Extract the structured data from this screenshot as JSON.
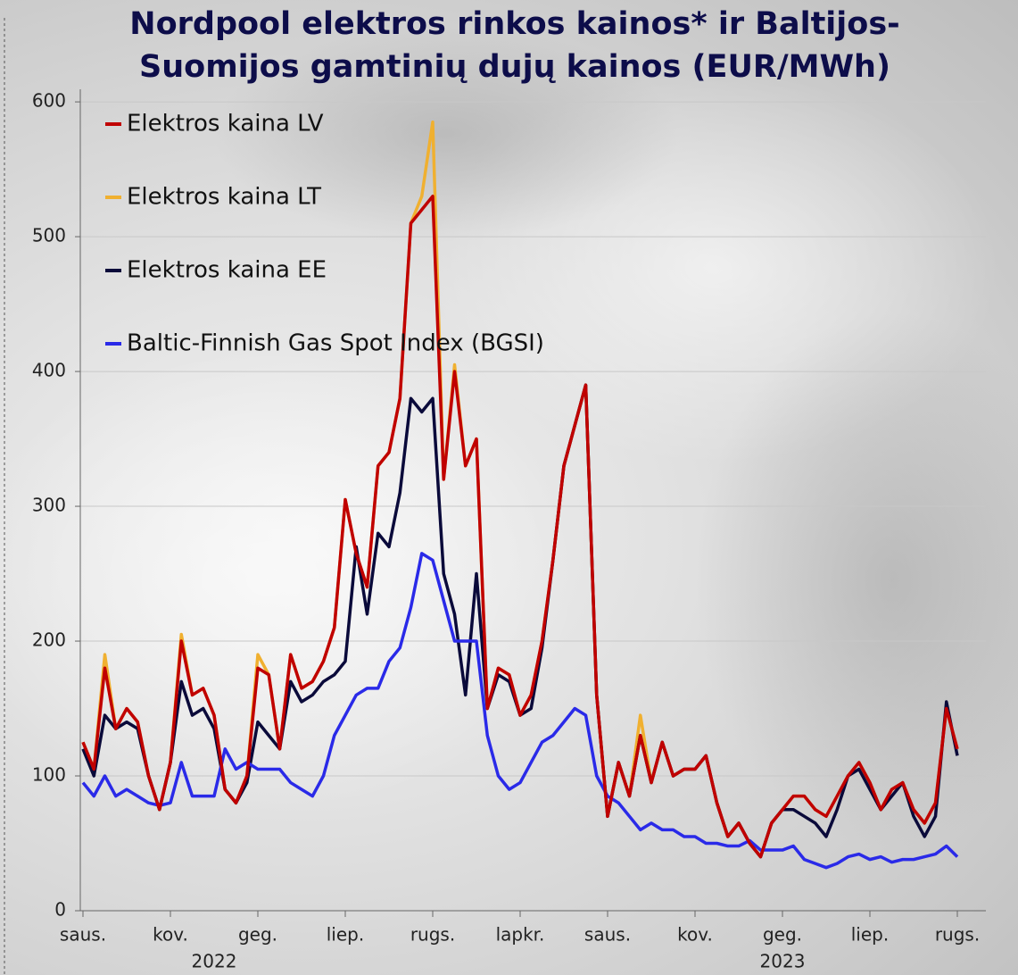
{
  "chart_data": {
    "type": "line",
    "title": [
      "Nordpool elektros rinkos kainos* ir Baltijos-",
      "Suomijos gamtinių dujų kainos (EUR/MWh)"
    ],
    "categories": [
      "saus.",
      null,
      null,
      null,
      null,
      null,
      null,
      null,
      "kov.",
      null,
      null,
      null,
      null,
      null,
      null,
      null,
      "geg.",
      null,
      null,
      null,
      null,
      null,
      null,
      null,
      "liep.",
      null,
      null,
      null,
      null,
      null,
      null,
      null,
      "rugs.",
      null,
      null,
      null,
      null,
      null,
      null,
      null,
      "lapkr.",
      null,
      null,
      null,
      null,
      null,
      null,
      null,
      "saus.",
      null,
      null,
      null,
      null,
      null,
      null,
      null,
      "kov.",
      null,
      null,
      null,
      null,
      null,
      null,
      null,
      "geg.",
      null,
      null,
      null,
      null,
      null,
      null,
      null,
      "liep.",
      null,
      null,
      null,
      null,
      null,
      null,
      null,
      "rugs."
    ],
    "year_categories": [
      null,
      null,
      null,
      null,
      null,
      null,
      null,
      null,
      null,
      null,
      null,
      null,
      "2022",
      null,
      null,
      null,
      null,
      null,
      null,
      null,
      null,
      null,
      null,
      null,
      null,
      null,
      null,
      null,
      null,
      null,
      null,
      null,
      null,
      null,
      null,
      null,
      null,
      null,
      null,
      null,
      null,
      null,
      null,
      null,
      null,
      null,
      null,
      null,
      null,
      null,
      null,
      null,
      null,
      null,
      null,
      null,
      null,
      null,
      null,
      null,
      null,
      null,
      null,
      null,
      "2023",
      null,
      null,
      null,
      null,
      null,
      null,
      null,
      null,
      null,
      null,
      null,
      null,
      null,
      null,
      null,
      null
    ],
    "ylim": [
      0,
      610
    ],
    "yticks": [
      0,
      100,
      200,
      300,
      400,
      500,
      600
    ],
    "grid": true,
    "legend": "upper-left",
    "series": [
      {
        "name": "Elektros kaina LV",
        "color": "#c00000",
        "values": [
          125,
          105,
          180,
          135,
          150,
          140,
          100,
          75,
          110,
          200,
          160,
          165,
          145,
          90,
          80,
          100,
          180,
          175,
          120,
          190,
          165,
          170,
          185,
          210,
          305,
          265,
          240,
          330,
          340,
          380,
          510,
          520,
          530,
          320,
          400,
          330,
          350,
          150,
          180,
          175,
          145,
          160,
          200,
          260,
          330,
          360,
          390,
          160,
          70,
          110,
          85,
          130,
          95,
          125,
          100,
          105,
          105,
          115,
          80,
          55,
          65,
          50,
          40,
          65,
          75,
          85,
          85,
          75,
          70,
          85,
          100,
          110,
          95,
          75,
          90,
          95,
          75,
          65,
          80,
          150,
          120
        ]
      },
      {
        "name": "Elektros kaina LT",
        "color": "#f0b030",
        "values": [
          125,
          105,
          190,
          135,
          150,
          140,
          100,
          75,
          110,
          205,
          160,
          165,
          145,
          90,
          80,
          100,
          190,
          175,
          120,
          190,
          165,
          170,
          185,
          210,
          305,
          265,
          240,
          330,
          340,
          380,
          510,
          530,
          585,
          320,
          405,
          330,
          350,
          150,
          180,
          175,
          145,
          160,
          200,
          260,
          330,
          360,
          390,
          160,
          70,
          110,
          85,
          145,
          95,
          125,
          100,
          105,
          105,
          115,
          80,
          55,
          65,
          50,
          40,
          65,
          75,
          85,
          85,
          75,
          70,
          85,
          100,
          110,
          95,
          75,
          90,
          95,
          75,
          65,
          80,
          150,
          120
        ]
      },
      {
        "name": "Elektros kaina EE",
        "color": "#0a0a3a",
        "values": [
          120,
          100,
          145,
          135,
          140,
          135,
          100,
          75,
          110,
          170,
          145,
          150,
          135,
          90,
          80,
          95,
          140,
          130,
          120,
          170,
          155,
          160,
          170,
          175,
          185,
          270,
          220,
          280,
          270,
          310,
          380,
          370,
          380,
          250,
          220,
          160,
          250,
          150,
          175,
          170,
          145,
          150,
          195,
          260,
          330,
          360,
          390,
          160,
          70,
          110,
          85,
          130,
          95,
          125,
          100,
          105,
          105,
          115,
          80,
          55,
          65,
          50,
          40,
          65,
          75,
          75,
          70,
          65,
          55,
          75,
          100,
          105,
          90,
          75,
          85,
          95,
          70,
          55,
          70,
          155,
          115
        ]
      },
      {
        "name": "Baltic-Finnish Gas Spot Index (BGSI)",
        "color": "#2a2ae8",
        "values": [
          95,
          85,
          100,
          85,
          90,
          85,
          80,
          78,
          80,
          110,
          85,
          85,
          85,
          120,
          105,
          110,
          105,
          105,
          105,
          95,
          90,
          85,
          100,
          130,
          145,
          160,
          165,
          165,
          185,
          195,
          225,
          265,
          260,
          230,
          200,
          200,
          200,
          130,
          100,
          90,
          95,
          110,
          125,
          130,
          140,
          150,
          145,
          100,
          85,
          80,
          70,
          60,
          65,
          60,
          60,
          55,
          55,
          50,
          50,
          48,
          48,
          52,
          45,
          45,
          45,
          48,
          38,
          35,
          32,
          35,
          40,
          42,
          38,
          40,
          36,
          38,
          38,
          40,
          42,
          48,
          40
        ]
      }
    ]
  }
}
